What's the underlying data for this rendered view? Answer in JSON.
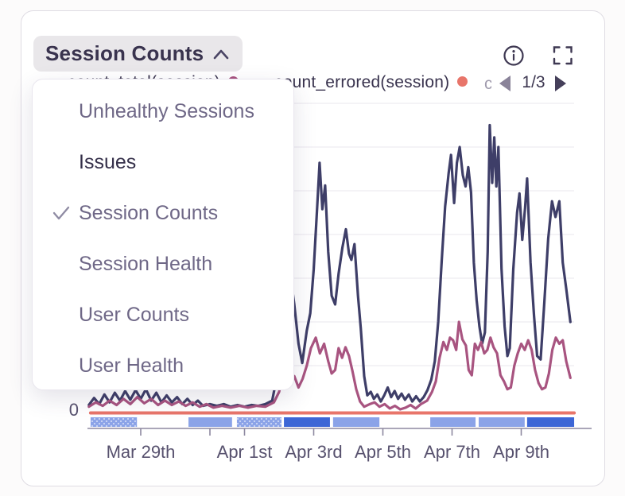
{
  "header": {
    "title": "Session Counts",
    "menu_state": "open"
  },
  "toolbar": {
    "info_icon": "info-icon",
    "fullscreen_icon": "fullscreen-icon"
  },
  "legend": {
    "items": [
      {
        "label": "count_total(session)",
        "color": "#A85480",
        "partially_hidden": true
      },
      {
        "label": "count_errored(session)",
        "color": "#E8756A",
        "partially_hidden": false
      }
    ],
    "overflow_fragment": "c",
    "pagination": {
      "current": 1,
      "total": 3,
      "display": "1/3"
    }
  },
  "dropdown": {
    "items": [
      {
        "label": "Unhealthy Sessions",
        "checked": false,
        "highlighted": false
      },
      {
        "label": "Issues",
        "checked": false,
        "highlighted": true
      },
      {
        "label": "Session Counts",
        "checked": true,
        "highlighted": false
      },
      {
        "label": "Session Health",
        "checked": false,
        "highlighted": false
      },
      {
        "label": "User Counts",
        "checked": false,
        "highlighted": false
      },
      {
        "label": "User Health",
        "checked": false,
        "highlighted": false
      }
    ]
  },
  "chart_data": {
    "type": "line",
    "title": "Session Counts",
    "x_axis": {
      "unit": "date",
      "day0_date": "Mar 27",
      "domain_days": [
        0.46,
        14.44
      ],
      "ticks": [
        {
          "day": 2,
          "label": "Mar 29th"
        },
        {
          "day": 4,
          "label": ""
        },
        {
          "day": 5,
          "label": "Apr 1st"
        },
        {
          "day": 7,
          "label": "Apr 3rd"
        },
        {
          "day": 9,
          "label": "Apr 5th"
        },
        {
          "day": 11,
          "label": "Apr 7th"
        },
        {
          "day": 13,
          "label": "Apr 9th"
        }
      ]
    },
    "y_axis": {
      "min": 0,
      "zero_label": "0",
      "gridline_values": [
        50,
        100,
        150,
        200,
        250,
        300,
        350
      ],
      "note": "axis unlabeled above 0; values estimated in sessions"
    },
    "grid": true,
    "legend_position": "top",
    "series": [
      {
        "id": "series-navy",
        "color": "#3E3E68",
        "points": [
          [
            0.5,
            5
          ],
          [
            0.65,
            13
          ],
          [
            0.8,
            6
          ],
          [
            0.95,
            17
          ],
          [
            1.1,
            8
          ],
          [
            1.25,
            19
          ],
          [
            1.4,
            10
          ],
          [
            1.55,
            21
          ],
          [
            1.7,
            11
          ],
          [
            1.85,
            22
          ],
          [
            2.0,
            12
          ],
          [
            2.15,
            23
          ],
          [
            2.3,
            10
          ],
          [
            2.45,
            19
          ],
          [
            2.6,
            8
          ],
          [
            2.75,
            16
          ],
          [
            2.9,
            8
          ],
          [
            3.05,
            14
          ],
          [
            3.2,
            6
          ],
          [
            3.35,
            12
          ],
          [
            3.5,
            5
          ],
          [
            3.65,
            10
          ],
          [
            3.8,
            4
          ],
          [
            4.0,
            6
          ],
          [
            4.2,
            4
          ],
          [
            4.4,
            6
          ],
          [
            4.6,
            3
          ],
          [
            4.8,
            5
          ],
          [
            5.0,
            3
          ],
          [
            5.2,
            5
          ],
          [
            5.4,
            4
          ],
          [
            5.6,
            6
          ],
          [
            5.8,
            10
          ],
          [
            5.95,
            40
          ],
          [
            6.1,
            150
          ],
          [
            6.22,
            190
          ],
          [
            6.34,
            150
          ],
          [
            6.44,
            120
          ],
          [
            6.56,
            75
          ],
          [
            6.67,
            53
          ],
          [
            6.8,
            90
          ],
          [
            6.9,
            110
          ],
          [
            7.0,
            160
          ],
          [
            7.1,
            230
          ],
          [
            7.17,
            282
          ],
          [
            7.25,
            229
          ],
          [
            7.33,
            256
          ],
          [
            7.42,
            180
          ],
          [
            7.52,
            130
          ],
          [
            7.62,
            120
          ],
          [
            7.72,
            155
          ],
          [
            7.83,
            185
          ],
          [
            7.93,
            206
          ],
          [
            8.02,
            178
          ],
          [
            8.09,
            171
          ],
          [
            8.18,
            189
          ],
          [
            8.28,
            130
          ],
          [
            8.36,
            93
          ],
          [
            8.46,
            38
          ],
          [
            8.55,
            16
          ],
          [
            8.65,
            20
          ],
          [
            8.74,
            12
          ],
          [
            8.84,
            17
          ],
          [
            8.94,
            9
          ],
          [
            9.04,
            16
          ],
          [
            9.14,
            25
          ],
          [
            9.24,
            14
          ],
          [
            9.34,
            21
          ],
          [
            9.44,
            12
          ],
          [
            9.54,
            18
          ],
          [
            9.64,
            11
          ],
          [
            9.75,
            17
          ],
          [
            9.85,
            9
          ],
          [
            9.96,
            15
          ],
          [
            10.07,
            9
          ],
          [
            10.18,
            14
          ],
          [
            10.29,
            22
          ],
          [
            10.4,
            34
          ],
          [
            10.5,
            55
          ],
          [
            10.6,
            100
          ],
          [
            10.7,
            170
          ],
          [
            10.8,
            232
          ],
          [
            10.9,
            270
          ],
          [
            10.97,
            291
          ],
          [
            11.06,
            236
          ],
          [
            11.14,
            282
          ],
          [
            11.22,
            300
          ],
          [
            11.31,
            268
          ],
          [
            11.39,
            255
          ],
          [
            11.47,
            277
          ],
          [
            11.55,
            248
          ],
          [
            11.63,
            168
          ],
          [
            11.71,
            125
          ],
          [
            11.79,
            95
          ],
          [
            11.87,
            75
          ],
          [
            11.95,
            88
          ],
          [
            12.03,
            180
          ],
          [
            12.09,
            325
          ],
          [
            12.16,
            259
          ],
          [
            12.22,
            311
          ],
          [
            12.28,
            255
          ],
          [
            12.34,
            300
          ],
          [
            12.43,
            161
          ],
          [
            12.52,
            95
          ],
          [
            12.6,
            61
          ],
          [
            12.67,
            70
          ],
          [
            12.77,
            160
          ],
          [
            12.88,
            225
          ],
          [
            12.95,
            247
          ],
          [
            13.03,
            194
          ],
          [
            13.11,
            230
          ],
          [
            13.17,
            264
          ],
          [
            13.27,
            168
          ],
          [
            13.37,
            107
          ],
          [
            13.46,
            61
          ],
          [
            13.56,
            57
          ],
          [
            13.67,
            123
          ],
          [
            13.78,
            195
          ],
          [
            13.89,
            238
          ],
          [
            13.99,
            220
          ],
          [
            14.1,
            238
          ],
          [
            14.2,
            168
          ],
          [
            14.3,
            138
          ],
          [
            14.42,
            100
          ]
        ]
      },
      {
        "id": "series-crimson",
        "color": "#A85480",
        "points": [
          [
            0.5,
            3
          ],
          [
            0.7,
            8
          ],
          [
            0.9,
            4
          ],
          [
            1.1,
            10
          ],
          [
            1.3,
            5
          ],
          [
            1.5,
            12
          ],
          [
            1.7,
            6
          ],
          [
            1.9,
            14
          ],
          [
            2.1,
            7
          ],
          [
            2.3,
            12
          ],
          [
            2.5,
            5
          ],
          [
            2.7,
            10
          ],
          [
            2.9,
            5
          ],
          [
            3.1,
            9
          ],
          [
            3.3,
            4
          ],
          [
            3.5,
            8
          ],
          [
            3.7,
            3
          ],
          [
            3.9,
            6
          ],
          [
            4.1,
            2
          ],
          [
            4.35,
            4
          ],
          [
            4.6,
            2
          ],
          [
            4.85,
            4
          ],
          [
            5.1,
            2
          ],
          [
            5.35,
            4
          ],
          [
            5.6,
            3
          ],
          [
            5.85,
            8
          ],
          [
            6.0,
            20
          ],
          [
            6.15,
            45
          ],
          [
            6.3,
            30
          ],
          [
            6.44,
            38
          ],
          [
            6.56,
            25
          ],
          [
            6.68,
            35
          ],
          [
            6.8,
            50
          ],
          [
            6.92,
            70
          ],
          [
            7.06,
            82
          ],
          [
            7.18,
            64
          ],
          [
            7.3,
            75
          ],
          [
            7.42,
            55
          ],
          [
            7.52,
            41
          ],
          [
            7.62,
            45
          ],
          [
            7.72,
            70
          ],
          [
            7.82,
            59
          ],
          [
            7.92,
            71
          ],
          [
            8.02,
            61
          ],
          [
            8.12,
            44
          ],
          [
            8.23,
            23
          ],
          [
            8.34,
            9
          ],
          [
            8.46,
            3
          ],
          [
            8.62,
            6
          ],
          [
            8.76,
            8
          ],
          [
            8.9,
            3
          ],
          [
            9.05,
            6
          ],
          [
            9.2,
            1
          ],
          [
            9.35,
            4
          ],
          [
            9.5,
            0
          ],
          [
            9.66,
            2
          ],
          [
            9.8,
            5
          ],
          [
            9.95,
            1
          ],
          [
            10.1,
            6
          ],
          [
            10.28,
            10
          ],
          [
            10.42,
            20
          ],
          [
            10.53,
            32
          ],
          [
            10.64,
            59
          ],
          [
            10.75,
            77
          ],
          [
            10.85,
            68
          ],
          [
            10.94,
            82
          ],
          [
            11.03,
            79
          ],
          [
            11.12,
            68
          ],
          [
            11.2,
            100
          ],
          [
            11.3,
            80
          ],
          [
            11.4,
            73
          ],
          [
            11.48,
            45
          ],
          [
            11.57,
            39
          ],
          [
            11.66,
            75
          ],
          [
            11.75,
            68
          ],
          [
            11.84,
            77
          ],
          [
            11.93,
            64
          ],
          [
            12.02,
            68
          ],
          [
            12.11,
            82
          ],
          [
            12.2,
            71
          ],
          [
            12.3,
            64
          ],
          [
            12.4,
            39
          ],
          [
            12.5,
            32
          ],
          [
            12.6,
            23
          ],
          [
            12.7,
            25
          ],
          [
            12.8,
            50
          ],
          [
            12.9,
            64
          ],
          [
            13.0,
            75
          ],
          [
            13.1,
            68
          ],
          [
            13.2,
            79
          ],
          [
            13.3,
            68
          ],
          [
            13.4,
            45
          ],
          [
            13.5,
            30
          ],
          [
            13.6,
            23
          ],
          [
            13.7,
            25
          ],
          [
            13.8,
            41
          ],
          [
            13.9,
            68
          ],
          [
            14.0,
            82
          ],
          [
            14.1,
            75
          ],
          [
            14.2,
            79
          ],
          [
            14.3,
            55
          ],
          [
            14.42,
            36
          ]
        ]
      },
      {
        "id": "count_errored(session)",
        "color": "#E8756A",
        "flat_zero": true,
        "points": [
          [
            0.55,
            0
          ],
          [
            14.53,
            0
          ]
        ]
      }
    ],
    "release_strip": {
      "light_color": "#8BA3E8",
      "dark_color": "#3D66D6",
      "segments": [
        {
          "from_day": 0.55,
          "to_day": 1.89,
          "shade": "light-hatched"
        },
        {
          "from_day": 3.38,
          "to_day": 4.64,
          "shade": "light"
        },
        {
          "from_day": 4.78,
          "to_day": 6.07,
          "shade": "light-hatched"
        },
        {
          "from_day": 6.14,
          "to_day": 7.47,
          "shade": "dark"
        },
        {
          "from_day": 7.56,
          "to_day": 8.9,
          "shade": "light"
        },
        {
          "from_day": 10.37,
          "to_day": 11.68,
          "shade": "light"
        },
        {
          "from_day": 11.77,
          "to_day": 13.1,
          "shade": "light"
        },
        {
          "from_day": 13.17,
          "to_day": 14.53,
          "shade": "dark"
        }
      ]
    }
  }
}
